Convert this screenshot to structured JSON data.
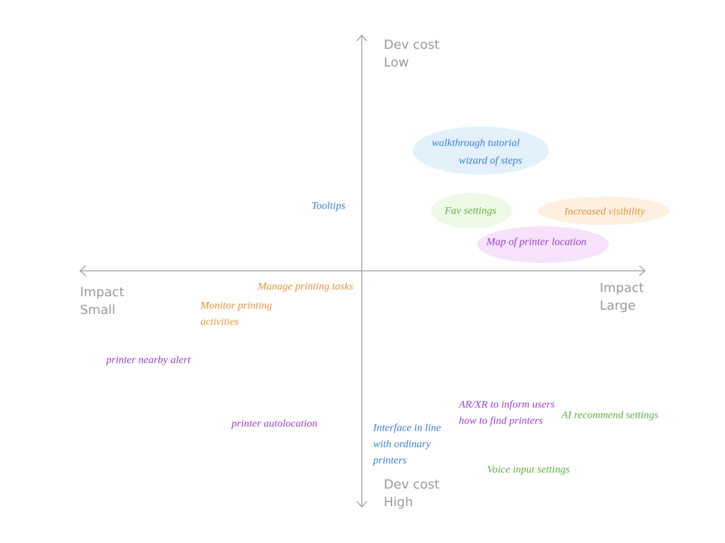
{
  "axes": {
    "top": [
      "Dev cost",
      "Low"
    ],
    "bottom": [
      "Dev cost",
      "High"
    ],
    "left": [
      "Impact",
      "Small"
    ],
    "right": [
      "Impact",
      "Large"
    ]
  },
  "items": [
    {
      "lines": [
        "walkthrough tutorial",
        "wizard of steps"
      ]
    },
    {
      "lines": [
        "Tooltips"
      ]
    },
    {
      "lines": [
        "Fav settings"
      ]
    },
    {
      "lines": [
        "Increased visibility"
      ]
    },
    {
      "lines": [
        "Map of printer location"
      ]
    },
    {
      "lines": [
        "Manage printing tasks"
      ]
    },
    {
      "lines": [
        "Monitor printing",
        "activities"
      ]
    },
    {
      "lines": [
        "printer nearby alert"
      ]
    },
    {
      "lines": [
        "printer autolocation"
      ]
    },
    {
      "lines": [
        "AR/XR to inform users",
        "how to find printers"
      ]
    },
    {
      "lines": [
        "AI recommend settings"
      ]
    },
    {
      "lines": [
        "Interface in line",
        "with ordinary",
        "printers"
      ]
    },
    {
      "lines": [
        "Voice input settings"
      ]
    }
  ]
}
